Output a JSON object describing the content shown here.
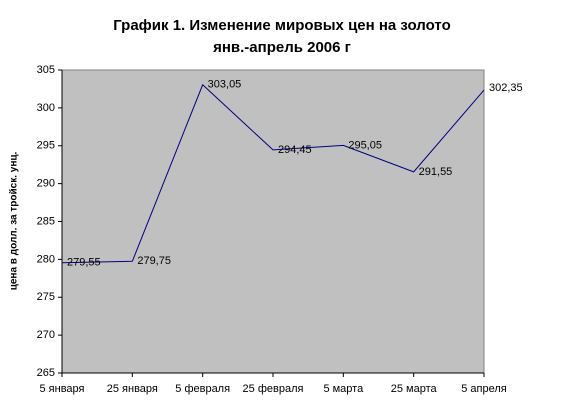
{
  "chart_data": {
    "type": "line",
    "title": "График 1. Изменение мировых цен на золото",
    "subtitle": "янв.-апрель 2006 г",
    "y_label": "цена в долл. за тройск. унц.",
    "categories": [
      "5 января",
      "25 января",
      "5 февраля",
      "25 февраля",
      "5 марта",
      "25 марта",
      "5 апреля"
    ],
    "values": [
      279.55,
      279.75,
      303.05,
      294.45,
      295.05,
      291.55,
      302.35
    ],
    "value_labels": [
      "279,55",
      "279,75",
      "303,05",
      "294,45",
      "295,05",
      "291,55",
      "302,35"
    ],
    "color": "#000080",
    "plot_background": "#c0c0c0",
    "ylim": [
      265,
      305
    ],
    "yticks": [
      265,
      270,
      275,
      280,
      285,
      290,
      295,
      300,
      305
    ],
    "grid": false
  }
}
